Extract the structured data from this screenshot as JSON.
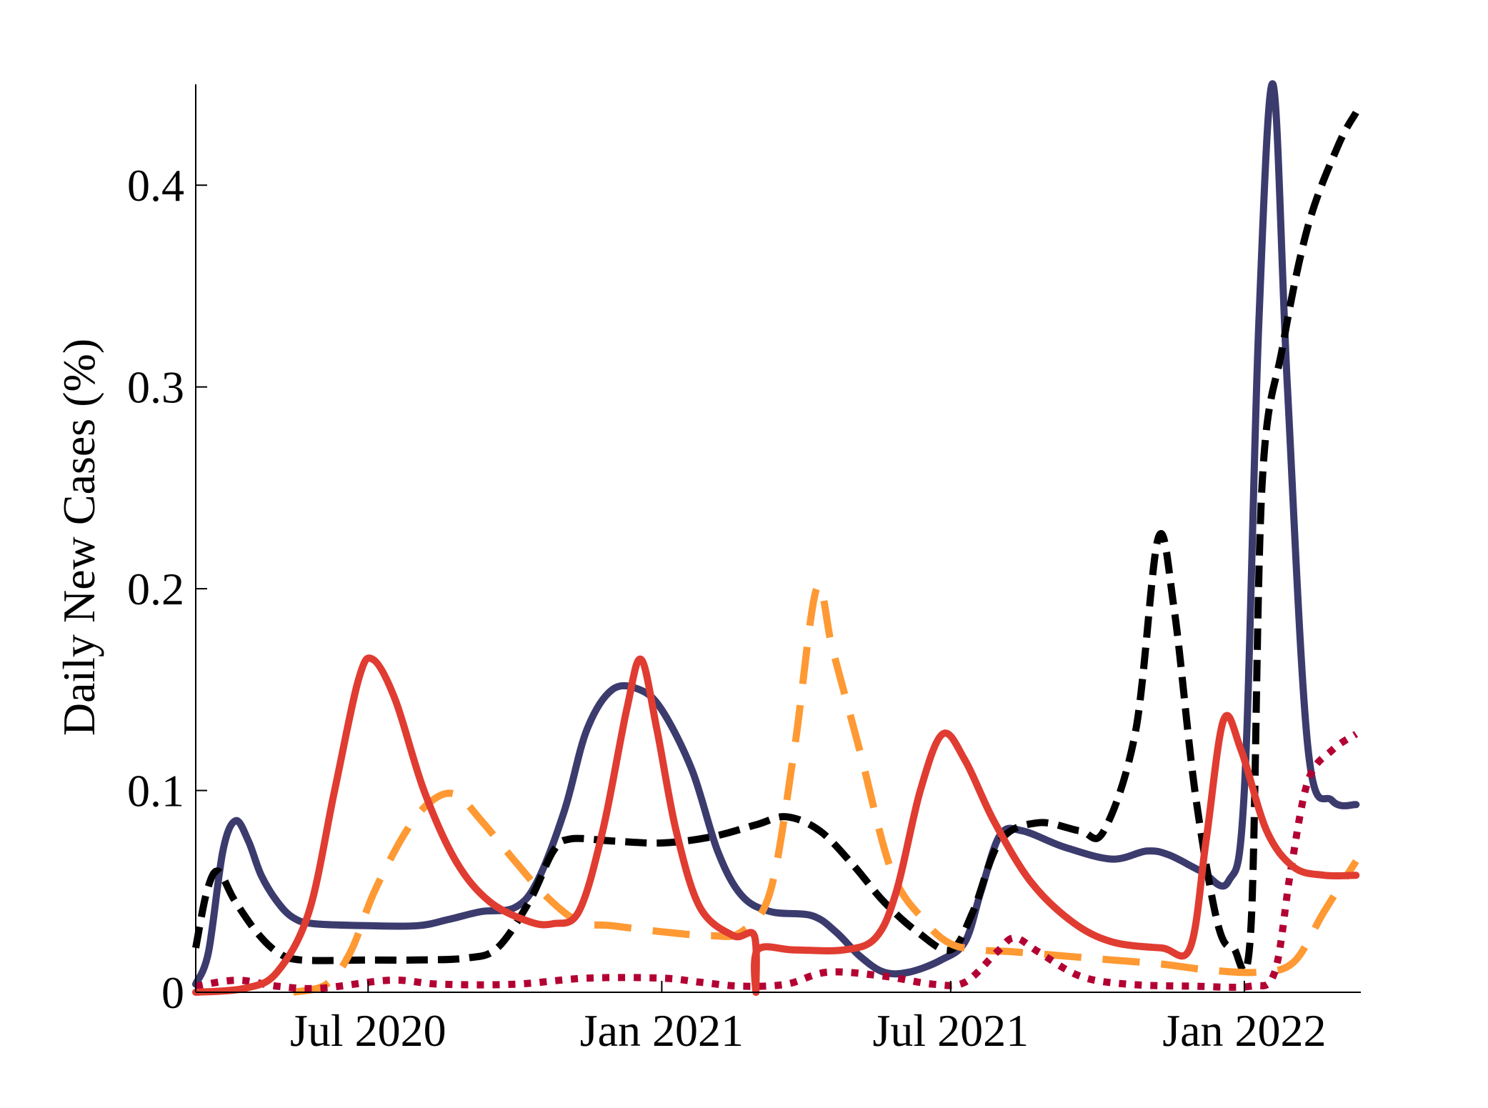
{
  "chart_data": {
    "type": "line",
    "ylabel": "Daily New Cases (%)",
    "xlabel": "",
    "title": "",
    "x_range": [
      "2020-03-15",
      "2022-03-15"
    ],
    "ylim": [
      0,
      0.45
    ],
    "y_ticks": [
      {
        "value": 0,
        "label": "0"
      },
      {
        "value": 0.1,
        "label": "0.1"
      },
      {
        "value": 0.2,
        "label": "0.2"
      },
      {
        "value": 0.3,
        "label": "0.3"
      },
      {
        "value": 0.4,
        "label": "0.4"
      }
    ],
    "x_ticks": [
      {
        "date": "2020-07-01",
        "label": "Jul 2020"
      },
      {
        "date": "2021-01-01",
        "label": "Jan 2021"
      },
      {
        "date": "2021-07-01",
        "label": "Jul 2021"
      },
      {
        "date": "2022-01-01",
        "label": "Jan 2022"
      }
    ],
    "grid": false,
    "legend": "none",
    "series": [
      {
        "id": "navy-solid",
        "color": "#3b3b6e",
        "style": "solid",
        "points": [
          [
            "2020-03-15",
            0.004
          ],
          [
            "2020-03-23",
            0.02
          ],
          [
            "2020-04-01",
            0.07
          ],
          [
            "2020-04-09",
            0.085
          ],
          [
            "2020-04-17",
            0.075
          ],
          [
            "2020-04-25",
            0.058
          ],
          [
            "2020-05-05",
            0.045
          ],
          [
            "2020-05-15",
            0.037
          ],
          [
            "2020-05-28",
            0.034
          ],
          [
            "2020-07-01",
            0.033
          ],
          [
            "2020-08-01",
            0.033
          ],
          [
            "2020-08-20",
            0.036
          ],
          [
            "2020-09-10",
            0.04
          ],
          [
            "2020-10-01",
            0.042
          ],
          [
            "2020-10-15",
            0.055
          ],
          [
            "2020-11-01",
            0.09
          ],
          [
            "2020-11-15",
            0.13
          ],
          [
            "2020-12-01",
            0.15
          ],
          [
            "2020-12-18",
            0.15
          ],
          [
            "2021-01-01",
            0.14
          ],
          [
            "2021-01-20",
            0.11
          ],
          [
            "2021-02-05",
            0.07
          ],
          [
            "2021-02-20",
            0.048
          ],
          [
            "2021-03-10",
            0.04
          ],
          [
            "2021-04-05",
            0.038
          ],
          [
            "2021-04-20",
            0.03
          ],
          [
            "2021-05-05",
            0.018
          ],
          [
            "2021-05-20",
            0.01
          ],
          [
            "2021-06-05",
            0.01
          ],
          [
            "2021-06-25",
            0.016
          ],
          [
            "2021-07-10",
            0.025
          ],
          [
            "2021-07-20",
            0.05
          ],
          [
            "2021-08-01",
            0.078
          ],
          [
            "2021-08-15",
            0.08
          ],
          [
            "2021-09-10",
            0.072
          ],
          [
            "2021-10-10",
            0.066
          ],
          [
            "2021-11-01",
            0.07
          ],
          [
            "2021-11-15",
            0.068
          ],
          [
            "2021-12-05",
            0.06
          ],
          [
            "2021-12-22",
            0.055
          ],
          [
            "2022-01-01",
            0.1
          ],
          [
            "2022-01-10",
            0.33
          ],
          [
            "2022-01-19",
            0.45
          ],
          [
            "2022-01-28",
            0.3
          ],
          [
            "2022-02-10",
            0.12
          ],
          [
            "2022-02-25",
            0.095
          ],
          [
            "2022-03-12",
            0.093
          ]
        ]
      },
      {
        "id": "black-dash",
        "color": "#000000",
        "style": "dash",
        "points": [
          [
            "2020-03-15",
            0.022
          ],
          [
            "2020-03-22",
            0.05
          ],
          [
            "2020-03-29",
            0.06
          ],
          [
            "2020-04-08",
            0.046
          ],
          [
            "2020-04-22",
            0.03
          ],
          [
            "2020-05-05",
            0.02
          ],
          [
            "2020-05-20",
            0.016
          ],
          [
            "2020-07-01",
            0.016
          ],
          [
            "2020-08-01",
            0.016
          ],
          [
            "2020-09-01",
            0.017
          ],
          [
            "2020-09-20",
            0.022
          ],
          [
            "2020-10-10",
            0.045
          ],
          [
            "2020-10-25",
            0.07
          ],
          [
            "2020-11-05",
            0.076
          ],
          [
            "2020-12-01",
            0.075
          ],
          [
            "2021-01-01",
            0.074
          ],
          [
            "2021-02-01",
            0.077
          ],
          [
            "2021-03-01",
            0.083
          ],
          [
            "2021-03-20",
            0.087
          ],
          [
            "2021-04-10",
            0.08
          ],
          [
            "2021-05-01",
            0.063
          ],
          [
            "2021-05-20",
            0.045
          ],
          [
            "2021-06-10",
            0.03
          ],
          [
            "2021-07-01",
            0.021
          ],
          [
            "2021-07-15",
            0.04
          ],
          [
            "2021-08-01",
            0.075
          ],
          [
            "2021-08-25",
            0.084
          ],
          [
            "2021-09-20",
            0.08
          ],
          [
            "2021-10-05",
            0.08
          ],
          [
            "2021-10-25",
            0.13
          ],
          [
            "2021-11-08",
            0.225
          ],
          [
            "2021-11-18",
            0.19
          ],
          [
            "2021-12-01",
            0.1
          ],
          [
            "2021-12-15",
            0.035
          ],
          [
            "2021-12-25",
            0.022
          ],
          [
            "2022-01-05",
            0.03
          ],
          [
            "2022-01-12",
            0.25
          ],
          [
            "2022-01-25",
            0.32
          ],
          [
            "2022-02-10",
            0.38
          ],
          [
            "2022-03-01",
            0.42
          ],
          [
            "2022-03-12",
            0.436
          ]
        ]
      },
      {
        "id": "orange-dash",
        "color": "#ff9933",
        "style": "longdash",
        "points": [
          [
            "2020-05-15",
            0.0
          ],
          [
            "2020-06-05",
            0.004
          ],
          [
            "2020-06-20",
            0.02
          ],
          [
            "2020-07-05",
            0.05
          ],
          [
            "2020-07-25",
            0.08
          ],
          [
            "2020-08-10",
            0.095
          ],
          [
            "2020-08-25",
            0.098
          ],
          [
            "2020-09-10",
            0.085
          ],
          [
            "2020-10-01",
            0.065
          ],
          [
            "2020-10-20",
            0.048
          ],
          [
            "2020-11-10",
            0.035
          ],
          [
            "2020-12-01",
            0.033
          ],
          [
            "2021-01-01",
            0.03
          ],
          [
            "2021-02-01",
            0.028
          ],
          [
            "2021-02-20",
            0.03
          ],
          [
            "2021-03-10",
            0.05
          ],
          [
            "2021-03-25",
            0.12
          ],
          [
            "2021-04-08",
            0.2
          ],
          [
            "2021-04-18",
            0.17
          ],
          [
            "2021-05-05",
            0.12
          ],
          [
            "2021-05-25",
            0.06
          ],
          [
            "2021-06-15",
            0.035
          ],
          [
            "2021-07-01",
            0.024
          ],
          [
            "2021-07-20",
            0.021
          ],
          [
            "2021-08-10",
            0.02
          ],
          [
            "2021-09-10",
            0.018
          ],
          [
            "2021-10-10",
            0.016
          ],
          [
            "2021-11-10",
            0.014
          ],
          [
            "2021-12-10",
            0.011
          ],
          [
            "2022-01-10",
            0.01
          ],
          [
            "2022-02-01",
            0.015
          ],
          [
            "2022-02-20",
            0.04
          ],
          [
            "2022-03-12",
            0.065
          ]
        ]
      },
      {
        "id": "crimson-dot",
        "color": "#b30033",
        "style": "dot",
        "points": [
          [
            "2020-03-15",
            0.003
          ],
          [
            "2020-04-10",
            0.006
          ],
          [
            "2020-05-05",
            0.003
          ],
          [
            "2020-06-01",
            0.002
          ],
          [
            "2020-07-15",
            0.006
          ],
          [
            "2020-08-15",
            0.004
          ],
          [
            "2020-10-01",
            0.004
          ],
          [
            "2020-11-15",
            0.007
          ],
          [
            "2021-01-01",
            0.007
          ],
          [
            "2021-01-25",
            0.005
          ],
          [
            "2021-02-20",
            0.003
          ],
          [
            "2021-03-20",
            0.004
          ],
          [
            "2021-04-15",
            0.01
          ],
          [
            "2021-05-20",
            0.008
          ],
          [
            "2021-06-20",
            0.004
          ],
          [
            "2021-07-10",
            0.005
          ],
          [
            "2021-07-30",
            0.02
          ],
          [
            "2021-08-10",
            0.027
          ],
          [
            "2021-08-25",
            0.02
          ],
          [
            "2021-09-20",
            0.008
          ],
          [
            "2021-10-20",
            0.004
          ],
          [
            "2021-12-01",
            0.003
          ],
          [
            "2022-01-05",
            0.003
          ],
          [
            "2022-01-20",
            0.01
          ],
          [
            "2022-01-30",
            0.06
          ],
          [
            "2022-02-10",
            0.105
          ],
          [
            "2022-02-25",
            0.12
          ],
          [
            "2022-03-12",
            0.128
          ]
        ]
      },
      {
        "id": "red-solid",
        "color": "#e03c31",
        "style": "solid",
        "points": [
          [
            "2020-03-15",
            0.0
          ],
          [
            "2020-04-15",
            0.002
          ],
          [
            "2020-05-05",
            0.01
          ],
          [
            "2020-05-25",
            0.04
          ],
          [
            "2020-06-10",
            0.1
          ],
          [
            "2020-06-25",
            0.155
          ],
          [
            "2020-07-04",
            0.165
          ],
          [
            "2020-07-18",
            0.145
          ],
          [
            "2020-08-05",
            0.1
          ],
          [
            "2020-08-25",
            0.065
          ],
          [
            "2020-09-15",
            0.045
          ],
          [
            "2020-10-10",
            0.035
          ],
          [
            "2020-10-25",
            0.034
          ],
          [
            "2020-11-10",
            0.04
          ],
          [
            "2020-11-25",
            0.08
          ],
          [
            "2020-12-10",
            0.14
          ],
          [
            "2020-12-19",
            0.165
          ],
          [
            "2020-12-29",
            0.13
          ],
          [
            "2021-01-10",
            0.08
          ],
          [
            "2021-01-25",
            0.042
          ],
          [
            "2021-02-15",
            0.028
          ],
          [
            "2021-02-28",
            0.028
          ],
          [
            "2021-03-01",
            0.0
          ],
          [
            "2021-03-02",
            0.021
          ],
          [
            "2021-03-25",
            0.021
          ],
          [
            "2021-04-25",
            0.021
          ],
          [
            "2021-05-15",
            0.027
          ],
          [
            "2021-05-28",
            0.05
          ],
          [
            "2021-06-12",
            0.1
          ],
          [
            "2021-06-26",
            0.128
          ],
          [
            "2021-07-10",
            0.115
          ],
          [
            "2021-07-28",
            0.085
          ],
          [
            "2021-08-20",
            0.055
          ],
          [
            "2021-09-15",
            0.035
          ],
          [
            "2021-10-10",
            0.025
          ],
          [
            "2021-11-10",
            0.022
          ],
          [
            "2021-11-28",
            0.022
          ],
          [
            "2021-12-08",
            0.075
          ],
          [
            "2021-12-19",
            0.135
          ],
          [
            "2021-12-30",
            0.12
          ],
          [
            "2022-01-15",
            0.08
          ],
          [
            "2022-02-01",
            0.062
          ],
          [
            "2022-02-20",
            0.058
          ],
          [
            "2022-03-12",
            0.058
          ]
        ]
      }
    ]
  }
}
